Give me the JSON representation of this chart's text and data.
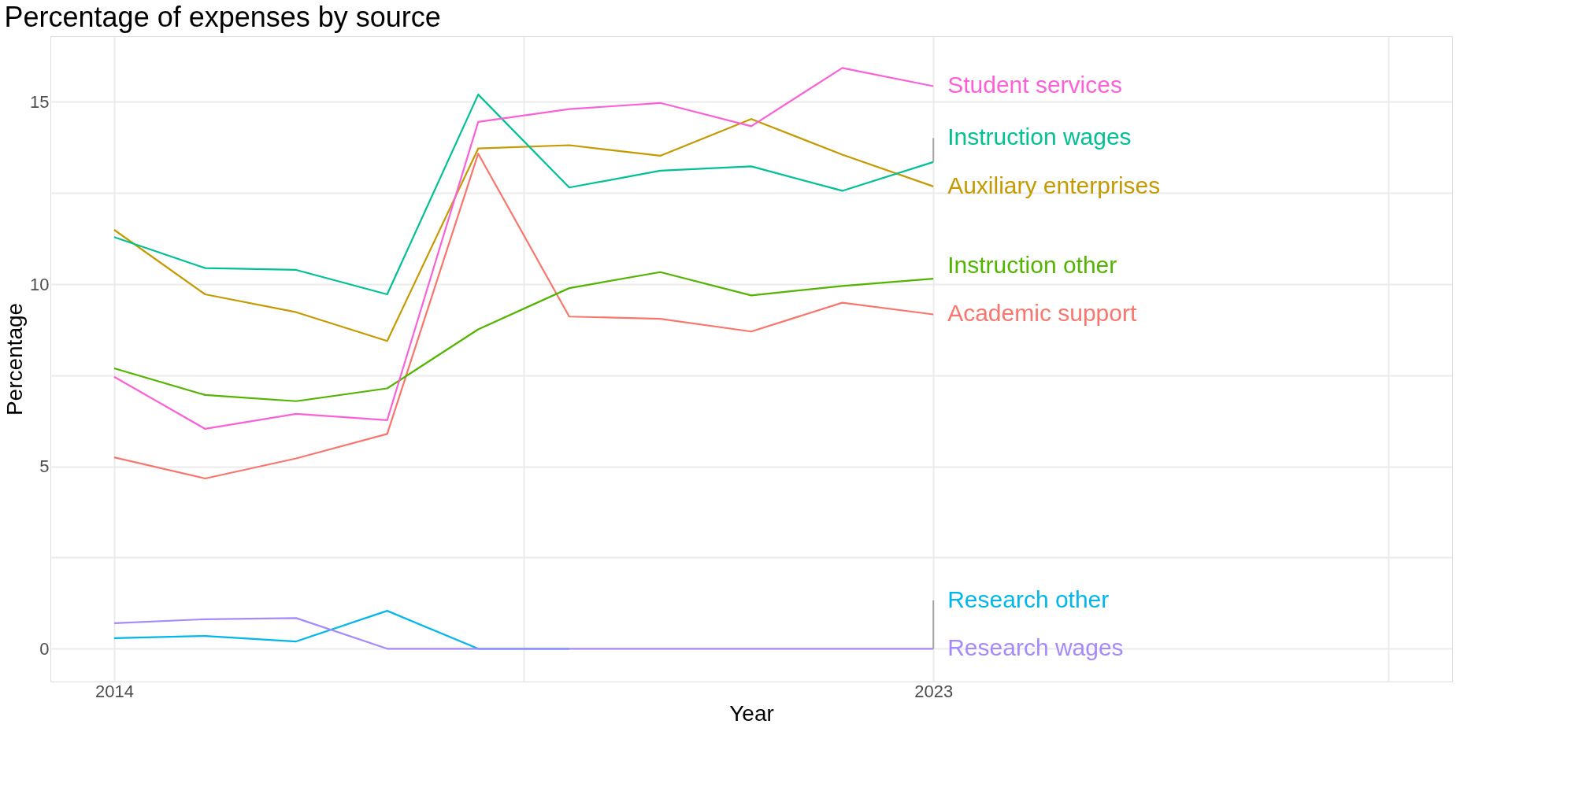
{
  "chart_data": {
    "type": "line",
    "title": "Percentage of expenses by source",
    "xlabel": "Year",
    "ylabel": "Percentage",
    "x": [
      2014,
      2015,
      2016,
      2017,
      2018,
      2019,
      2020,
      2021,
      2022,
      2023
    ],
    "xlim": [
      2013.3,
      2028.7
    ],
    "xticks": [
      2014,
      {
        "value": 2018.5,
        "label": null
      },
      2023,
      {
        "value": 2028,
        "label": null
      }
    ],
    "ylim": [
      -0.9,
      16.8
    ],
    "yticks": [
      0,
      {
        "value": 2.5,
        "label": null
      },
      5,
      {
        "value": 7.5,
        "label": null
      },
      10,
      {
        "value": 12.5,
        "label": null
      },
      15
    ],
    "grid": true,
    "legend": false,
    "series": [
      {
        "name": "Academic support",
        "color": "#f8766d",
        "values": [
          5.25,
          4.67,
          5.22,
          5.89,
          13.58,
          9.11,
          9.05,
          8.7,
          9.49,
          9.17
        ]
      },
      {
        "name": "Auxiliary enterprises",
        "color": "#c49a00",
        "values": [
          11.49,
          9.72,
          9.23,
          8.44,
          13.72,
          13.81,
          13.52,
          14.53,
          13.55,
          12.68
        ]
      },
      {
        "name": "Instruction other",
        "color": "#53b400",
        "values": [
          7.69,
          6.96,
          6.79,
          7.14,
          8.76,
          9.89,
          10.33,
          9.69,
          9.95,
          10.15
        ]
      },
      {
        "name": "Instruction wages",
        "color": "#00c094",
        "values": [
          11.29,
          10.44,
          10.39,
          9.72,
          15.2,
          12.65,
          13.11,
          13.23,
          12.56,
          13.35
        ]
      },
      {
        "name": "Research other",
        "color": "#00b6eb",
        "values": [
          0.29,
          0.35,
          0.2,
          1.04,
          0,
          0,
          null,
          null,
          null,
          null
        ]
      },
      {
        "name": "Research wages",
        "color": "#a58aff",
        "values": [
          0.7,
          0.81,
          0.84,
          0,
          0,
          0,
          0,
          0,
          0,
          0
        ]
      },
      {
        "name": "Student services",
        "color": "#fb61d7",
        "values": [
          7.46,
          6.03,
          6.44,
          6.27,
          14.45,
          14.8,
          14.97,
          14.33,
          15.93,
          15.43
        ]
      }
    ]
  }
}
